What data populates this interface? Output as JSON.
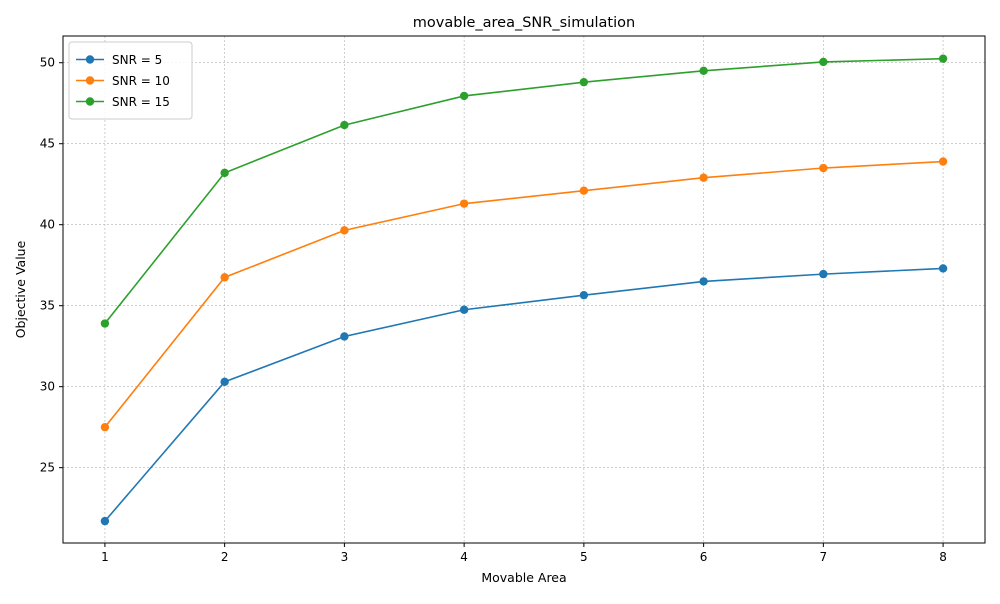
{
  "chart_data": {
    "type": "line",
    "title": "movable_area_SNR_simulation",
    "xlabel": "Movable Area",
    "ylabel": "Objective Value",
    "x": [
      1,
      2,
      3,
      4,
      5,
      6,
      7,
      8
    ],
    "xlim": [
      0.65,
      8.35
    ],
    "ylim": [
      20.35,
      51.65
    ],
    "xticks": [
      1,
      2,
      3,
      4,
      5,
      6,
      7,
      8
    ],
    "yticks": [
      25,
      30,
      35,
      40,
      45,
      50
    ],
    "grid": true,
    "legend_position": "upper-left",
    "marker": "circle",
    "series": [
      {
        "name": "SNR = 5",
        "color": "#1f77b4",
        "values": [
          21.7,
          30.3,
          33.1,
          34.75,
          35.65,
          36.5,
          36.95,
          37.3
        ]
      },
      {
        "name": "SNR = 10",
        "color": "#ff7f0e",
        "values": [
          27.5,
          36.75,
          39.65,
          41.3,
          42.1,
          42.9,
          43.5,
          43.9
        ]
      },
      {
        "name": "SNR = 15",
        "color": "#2ca02c",
        "values": [
          33.9,
          43.2,
          46.15,
          47.95,
          48.8,
          49.5,
          50.05,
          50.25
        ]
      }
    ]
  }
}
